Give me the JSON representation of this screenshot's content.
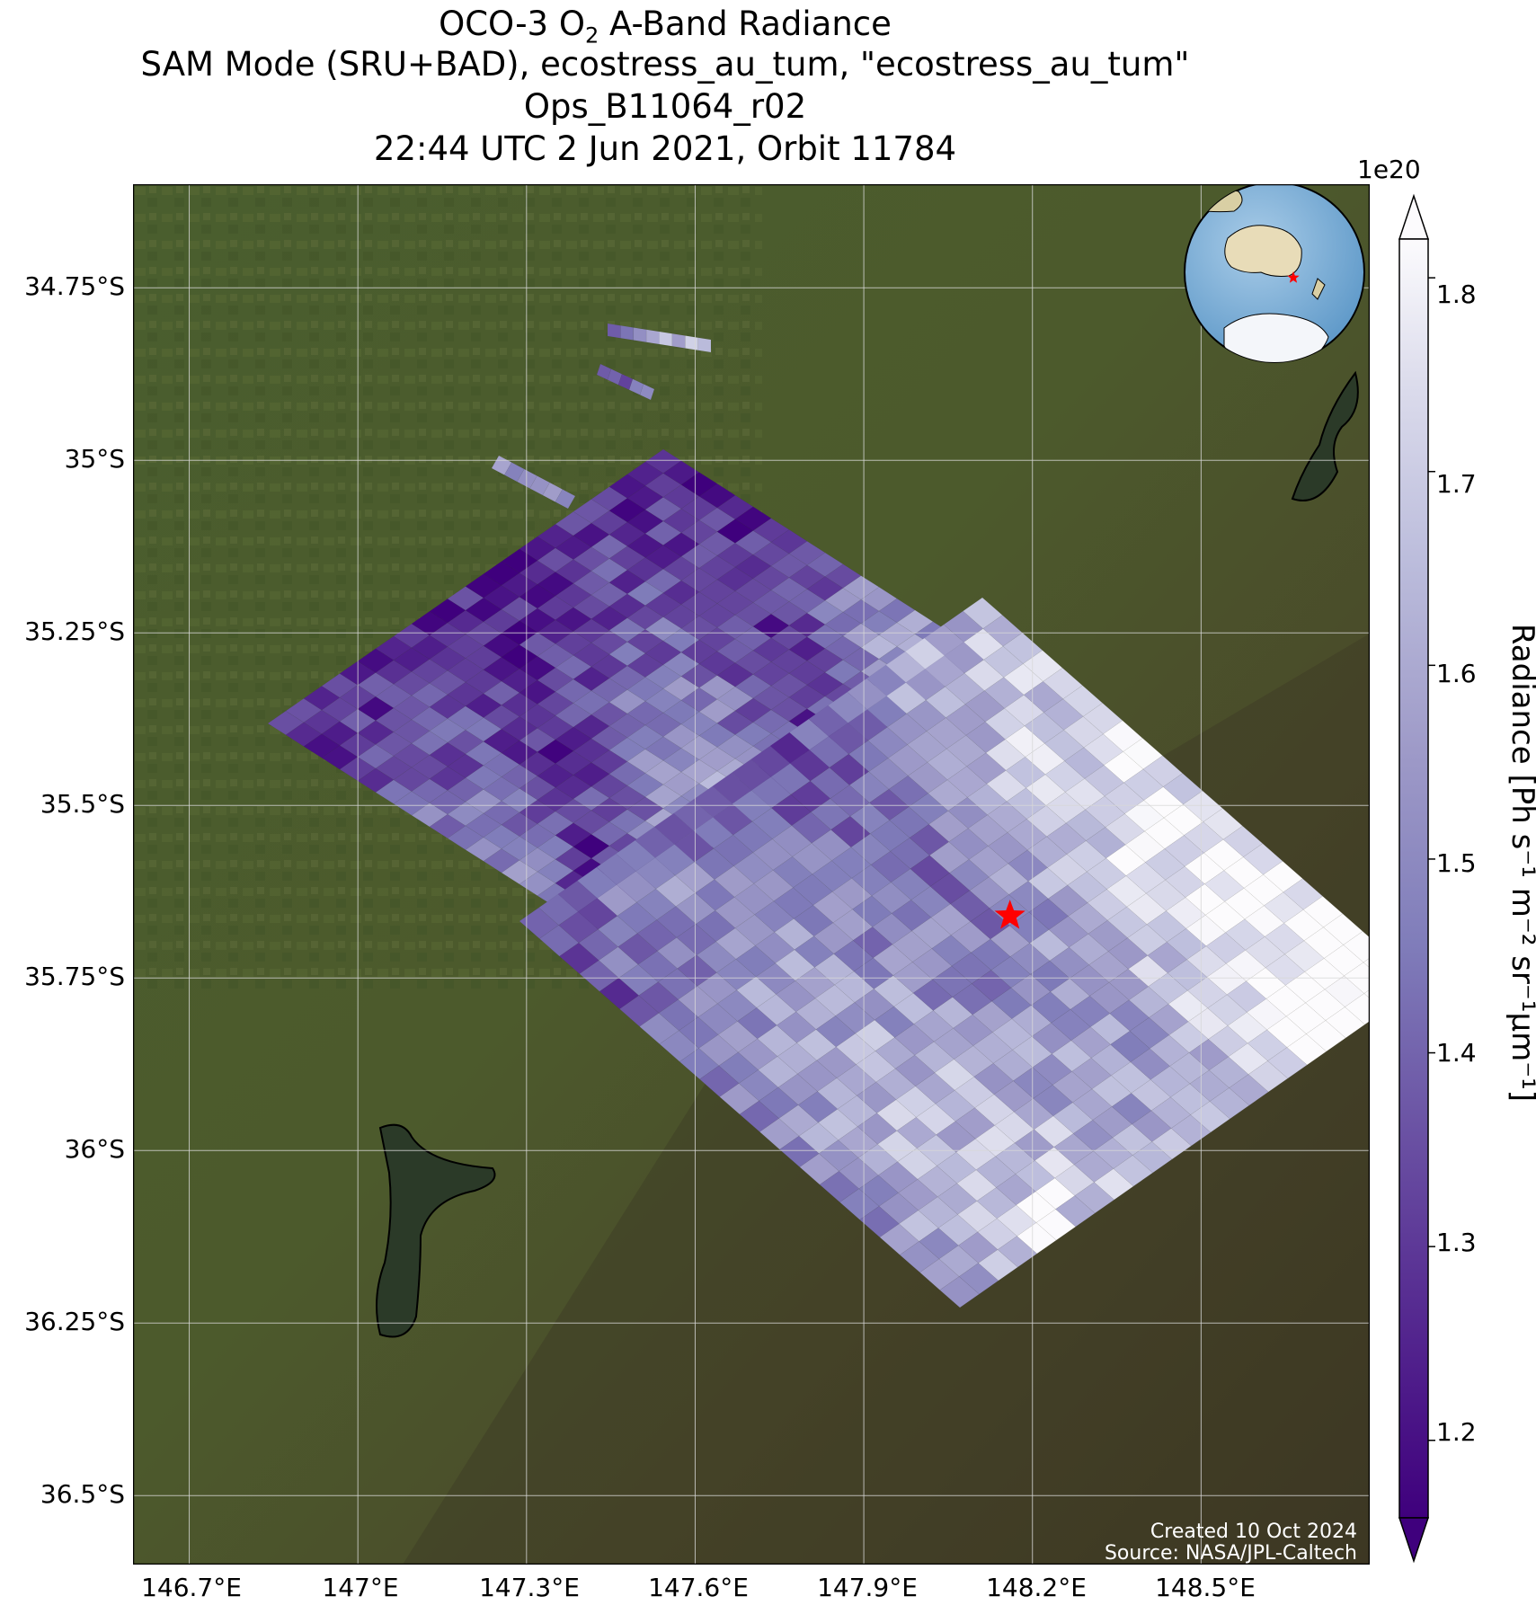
{
  "title": {
    "line1_pre": "OCO-3 O",
    "line1_sub": "2",
    "line1_post": " A-Band Radiance",
    "line2": "SAM Mode (SRU+BAD), ecostress_au_tum, \"ecostress_au_tum\"",
    "line3": "Ops_B11064_r02",
    "line4": "22:44 UTC 2 Jun 2021, Orbit 11784"
  },
  "map": {
    "lat_ticks": [
      "34.75°S",
      "35°S",
      "35.25°S",
      "35.5°S",
      "35.75°S",
      "36°S",
      "36.25°S",
      "36.5°S"
    ],
    "lat_values": [
      -34.75,
      -35.0,
      -35.25,
      -35.5,
      -35.75,
      -36.0,
      -36.25,
      -36.5
    ],
    "lon_ticks": [
      "146.7°E",
      "147°E",
      "147.3°E",
      "147.6°E",
      "147.9°E",
      "148.2°E",
      "148.5°E"
    ],
    "lon_values": [
      146.7,
      147.0,
      147.3,
      147.6,
      147.9,
      148.2,
      148.5
    ],
    "lat_range": [
      -36.6,
      -34.6
    ],
    "lon_range": [
      146.6,
      148.8
    ],
    "target_marker": {
      "lon": 148.16,
      "lat": -35.66,
      "color": "#ff0000",
      "icon": "red-star-icon"
    },
    "credit_line1": "Created 10 Oct 2024",
    "credit_line2": "Source: NASA/JPL-Caltech",
    "inset_globe": {
      "land_color": "#e8dcb8",
      "ocean_color": "#7ab0d8",
      "ice_color": "#f4f6fa",
      "marker_color": "#ff0000"
    }
  },
  "colorbar": {
    "label": "Radiance [Ph s⁻¹ m⁻² sr⁻¹μm⁻¹]",
    "exponent": "1e20",
    "ticks": [
      "1.2",
      "1.3",
      "1.4",
      "1.5",
      "1.6",
      "1.7",
      "1.8"
    ],
    "tick_values": [
      1.2,
      1.3,
      1.4,
      1.5,
      1.6,
      1.7,
      1.8
    ],
    "vmin": 1.16,
    "vmax": 1.82,
    "cmap": "Purples_r",
    "color_low": "#3f007d",
    "color_high": "#fcfbfd"
  }
}
